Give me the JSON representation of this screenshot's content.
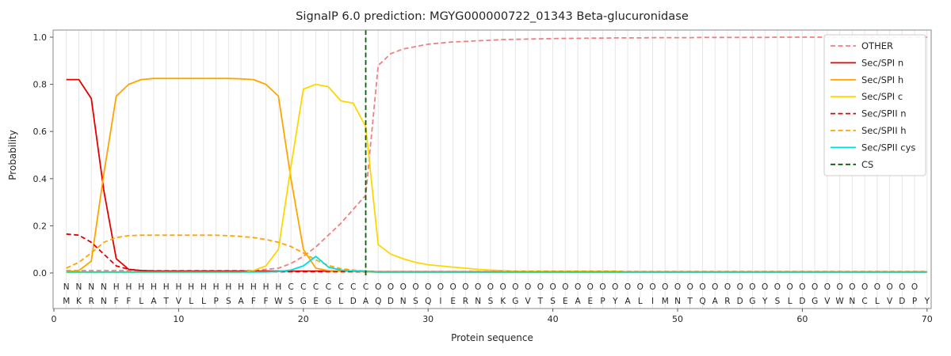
{
  "chart_data": {
    "type": "line",
    "title": "SignalP 6.0 prediction: MGYG000000722_01343 Beta-glucuronidase",
    "xlabel": "Protein sequence",
    "ylabel": "Probability",
    "xlim": [
      0,
      70.5
    ],
    "ylim": [
      0,
      1.05
    ],
    "x_ticks": [
      0,
      10,
      20,
      30,
      40,
      50,
      60,
      70
    ],
    "y_ticks": [
      0.0,
      0.2,
      0.4,
      0.6,
      0.8,
      1.0
    ],
    "x_first": 1,
    "x_step": 1,
    "grid": "vertical-per-residue",
    "grid_color": "#e6e6e6",
    "frame_color": "#8a8a8a",
    "legend_position": "upper right",
    "series": [
      {
        "name": "OTHER",
        "color": "#f08080",
        "dash": "dashed",
        "values": [
          0.01,
          0.01,
          0.01,
          0.01,
          0.01,
          0.01,
          0.01,
          0.01,
          0.01,
          0.01,
          0.01,
          0.01,
          0.01,
          0.01,
          0.01,
          0.01,
          0.015,
          0.02,
          0.04,
          0.07,
          0.11,
          0.16,
          0.21,
          0.27,
          0.33,
          0.88,
          0.93,
          0.95,
          0.96,
          0.97,
          0.975,
          0.98,
          0.982,
          0.985,
          0.987,
          0.99,
          0.991,
          0.992,
          0.993,
          0.994,
          0.995,
          0.995,
          0.996,
          0.996,
          0.997,
          0.997,
          0.997,
          0.998,
          0.998,
          0.998,
          0.998,
          0.999,
          0.999,
          0.999,
          0.999,
          0.999,
          0.999,
          1.0,
          1.0,
          1.0,
          1.0,
          1.0,
          1.0,
          1.0,
          1.0,
          1.0,
          1.0,
          1.0,
          1.0,
          1.0
        ]
      },
      {
        "name": "Sec/SPI n",
        "color": "#e50000",
        "dash": "solid",
        "values": [
          0.82,
          0.82,
          0.74,
          0.35,
          0.06,
          0.015,
          0.01,
          0.008,
          0.008,
          0.008,
          0.008,
          0.008,
          0.008,
          0.008,
          0.008,
          0.008,
          0.008,
          0.008,
          0.008,
          0.008,
          0.008,
          0.008,
          0.008,
          0.008,
          0.008,
          0.005,
          0.005,
          0.005,
          0.005,
          0.005,
          0.005,
          0.005,
          0.005,
          0.005,
          0.005,
          0.005,
          0.005,
          0.005,
          0.005,
          0.005,
          0.005,
          0.005,
          0.005,
          0.005,
          0.005,
          0.005,
          0.005,
          0.005,
          0.005,
          0.005,
          0.005,
          0.005,
          0.005,
          0.005,
          0.005,
          0.005,
          0.005,
          0.005,
          0.005,
          0.005,
          0.005,
          0.005,
          0.005,
          0.005,
          0.005,
          0.005,
          0.005,
          0.005,
          0.005,
          0.005
        ]
      },
      {
        "name": "Sec/SPI h",
        "color": "#ffa500",
        "dash": "solid",
        "values": [
          0.005,
          0.01,
          0.05,
          0.42,
          0.75,
          0.8,
          0.82,
          0.825,
          0.825,
          0.825,
          0.825,
          0.825,
          0.825,
          0.825,
          0.823,
          0.82,
          0.8,
          0.75,
          0.4,
          0.1,
          0.02,
          0.01,
          0.008,
          0.006,
          0.005,
          0.003,
          0.003,
          0.003,
          0.003,
          0.003,
          0.003,
          0.003,
          0.003,
          0.003,
          0.003,
          0.003,
          0.003,
          0.003,
          0.003,
          0.003,
          0.003,
          0.003,
          0.003,
          0.003,
          0.003,
          0.003,
          0.003,
          0.003,
          0.003,
          0.003,
          0.003,
          0.003,
          0.003,
          0.003,
          0.003,
          0.003,
          0.003,
          0.003,
          0.003,
          0.003,
          0.003,
          0.003,
          0.003,
          0.003,
          0.003,
          0.003,
          0.003,
          0.003,
          0.003,
          0.003
        ]
      },
      {
        "name": "Sec/SPI c",
        "color": "#ffd700",
        "dash": "solid",
        "values": [
          0.003,
          0.003,
          0.003,
          0.003,
          0.003,
          0.003,
          0.003,
          0.003,
          0.003,
          0.003,
          0.003,
          0.003,
          0.003,
          0.003,
          0.003,
          0.01,
          0.03,
          0.1,
          0.45,
          0.78,
          0.8,
          0.79,
          0.73,
          0.72,
          0.62,
          0.12,
          0.08,
          0.06,
          0.045,
          0.035,
          0.03,
          0.025,
          0.02,
          0.015,
          0.012,
          0.01,
          0.008,
          0.008,
          0.008,
          0.008,
          0.008,
          0.008,
          0.008,
          0.008,
          0.008,
          0.005,
          0.005,
          0.005,
          0.005,
          0.005,
          0.005,
          0.005,
          0.005,
          0.005,
          0.005,
          0.005,
          0.005,
          0.005,
          0.005,
          0.005,
          0.005,
          0.005,
          0.005,
          0.005,
          0.005,
          0.005,
          0.005,
          0.005,
          0.005,
          0.005
        ]
      },
      {
        "name": "Sec/SPII n",
        "color": "#e50000",
        "dash": "dashed",
        "values": [
          0.165,
          0.16,
          0.13,
          0.08,
          0.03,
          0.015,
          0.01,
          0.008,
          0.005,
          0.005,
          0.005,
          0.005,
          0.005,
          0.005,
          0.005,
          0.005,
          0.005,
          0.005,
          0.005,
          0.005,
          0.005,
          0.005,
          0.005,
          0.005,
          0.005,
          0.005,
          0.005,
          0.005,
          0.005,
          0.005,
          0.005,
          0.005,
          0.005,
          0.005,
          0.005,
          0.005,
          0.005,
          0.005,
          0.005,
          0.005,
          0.005,
          0.005,
          0.005,
          0.005,
          0.005,
          0.005,
          0.005,
          0.005,
          0.005,
          0.005,
          0.005,
          0.005,
          0.005,
          0.005,
          0.005,
          0.005,
          0.005,
          0.005,
          0.005,
          0.005,
          0.005,
          0.005,
          0.005,
          0.005,
          0.005,
          0.005,
          0.005,
          0.005,
          0.005,
          0.005
        ]
      },
      {
        "name": "Sec/SPII h",
        "color": "#ffa500",
        "dash": "dashed",
        "values": [
          0.02,
          0.045,
          0.085,
          0.13,
          0.15,
          0.158,
          0.16,
          0.16,
          0.16,
          0.16,
          0.16,
          0.16,
          0.16,
          0.158,
          0.155,
          0.15,
          0.142,
          0.13,
          0.112,
          0.085,
          0.055,
          0.032,
          0.018,
          0.012,
          0.008,
          0.004,
          0.004,
          0.004,
          0.004,
          0.004,
          0.004,
          0.004,
          0.004,
          0.004,
          0.004,
          0.004,
          0.004,
          0.004,
          0.004,
          0.004,
          0.004,
          0.004,
          0.004,
          0.004,
          0.004,
          0.004,
          0.004,
          0.004,
          0.004,
          0.004,
          0.004,
          0.004,
          0.004,
          0.004,
          0.004,
          0.004,
          0.004,
          0.004,
          0.004,
          0.004,
          0.004,
          0.004,
          0.004,
          0.004,
          0.004,
          0.004,
          0.004,
          0.004,
          0.004,
          0.004
        ]
      },
      {
        "name": "Sec/SPII cys",
        "color": "#00dddd",
        "dash": "solid",
        "values": [
          0.004,
          0.004,
          0.004,
          0.004,
          0.004,
          0.004,
          0.004,
          0.004,
          0.004,
          0.004,
          0.004,
          0.004,
          0.004,
          0.004,
          0.004,
          0.004,
          0.004,
          0.006,
          0.012,
          0.03,
          0.07,
          0.025,
          0.012,
          0.008,
          0.006,
          0.004,
          0.004,
          0.004,
          0.004,
          0.004,
          0.004,
          0.004,
          0.004,
          0.004,
          0.004,
          0.004,
          0.004,
          0.004,
          0.004,
          0.004,
          0.004,
          0.004,
          0.004,
          0.004,
          0.004,
          0.004,
          0.004,
          0.004,
          0.004,
          0.004,
          0.004,
          0.004,
          0.004,
          0.004,
          0.004,
          0.004,
          0.004,
          0.004,
          0.004,
          0.004,
          0.004,
          0.004,
          0.004,
          0.004,
          0.004,
          0.004,
          0.004,
          0.004,
          0.004,
          0.004
        ]
      }
    ],
    "cs_line": {
      "name": "CS",
      "x": 25,
      "color": "#006400",
      "dash": "dashed"
    },
    "sequence": "MKRNFFLATVLLPSAFFWSGEGLDAQDNSQIERNSKGVTSEAEPYALIMNTQARDGYSLDGVWNCLVDPY",
    "regions": "NNNNHHHHHHHHHHHHHHCCCCCCCOOOOOOOOOOOOOOOOOOOOOOOOOOOOOOOOOOOOOOOOOOOO",
    "region_colors": {
      "N": "#e50000",
      "H": "#ffa500",
      "C": "#ffd700",
      "O": "#9b9b9b"
    },
    "sequence_color": "#1a1a1a"
  }
}
